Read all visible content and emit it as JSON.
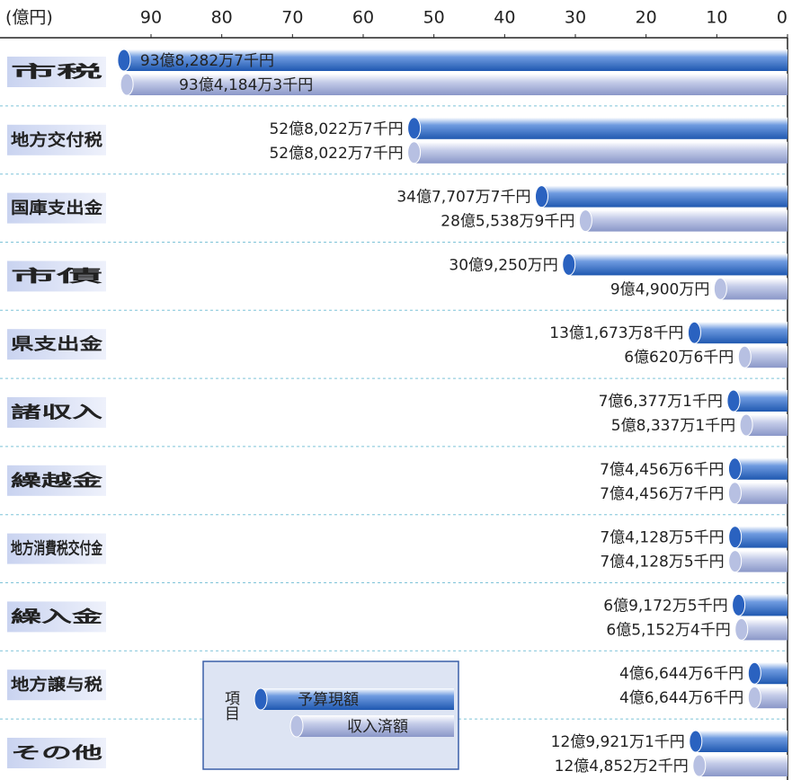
{
  "chart_data": {
    "type": "bar",
    "orientation": "horizontal",
    "x_axis_label": "(億円)",
    "legend_title": "項目",
    "categories": [
      "市税",
      "地方交付税",
      "国庫支出金",
      "市債",
      "県支出金",
      "諸収入",
      "繰越金",
      "地方消費税交付金",
      "繰入金",
      "地方譲与税",
      "その他"
    ],
    "series": [
      {
        "name": "予算現額",
        "color": "#1f58b0",
        "values": [
          93.82827,
          52.80227,
          34.77077,
          30.925,
          13.16738,
          7.63771,
          7.44566,
          7.41285,
          6.91725,
          4.66446,
          12.99211
        ],
        "value_labels": [
          "93億8,282万7千円",
          "52億8,022万7千円",
          "34億7,707万7千円",
          "30億9,250万円",
          "13億1,673万8千円",
          "7億6,377万1千円",
          "7億4,456万6千円",
          "7億4,128万5千円",
          "6億9,172万5千円",
          "4億6,644万6千円",
          "12億9,921万1千円"
        ]
      },
      {
        "name": "収入済額",
        "color": "#9aa6d2",
        "values": [
          93.41843,
          52.80227,
          28.55389,
          9.49,
          6.06206,
          5.83371,
          7.44567,
          7.41285,
          6.51524,
          4.66446,
          12.48522
        ],
        "value_labels": [
          "93億4,184万3千円",
          "52億8,022万7千円",
          "28億5,538万9千円",
          "9億4,900万円",
          "6億620万6千円",
          "5億8,337万1千円",
          "7億4,456万7千円",
          "7億4,128万5千円",
          "6億5,152万4千円",
          "4億6,644万6千円",
          "12億4,852万2千円"
        ]
      }
    ],
    "xlim": [
      0,
      90
    ],
    "xticks": [
      90,
      80,
      70,
      60,
      50,
      40,
      30,
      20,
      10,
      0
    ],
    "x_reversed": true
  }
}
